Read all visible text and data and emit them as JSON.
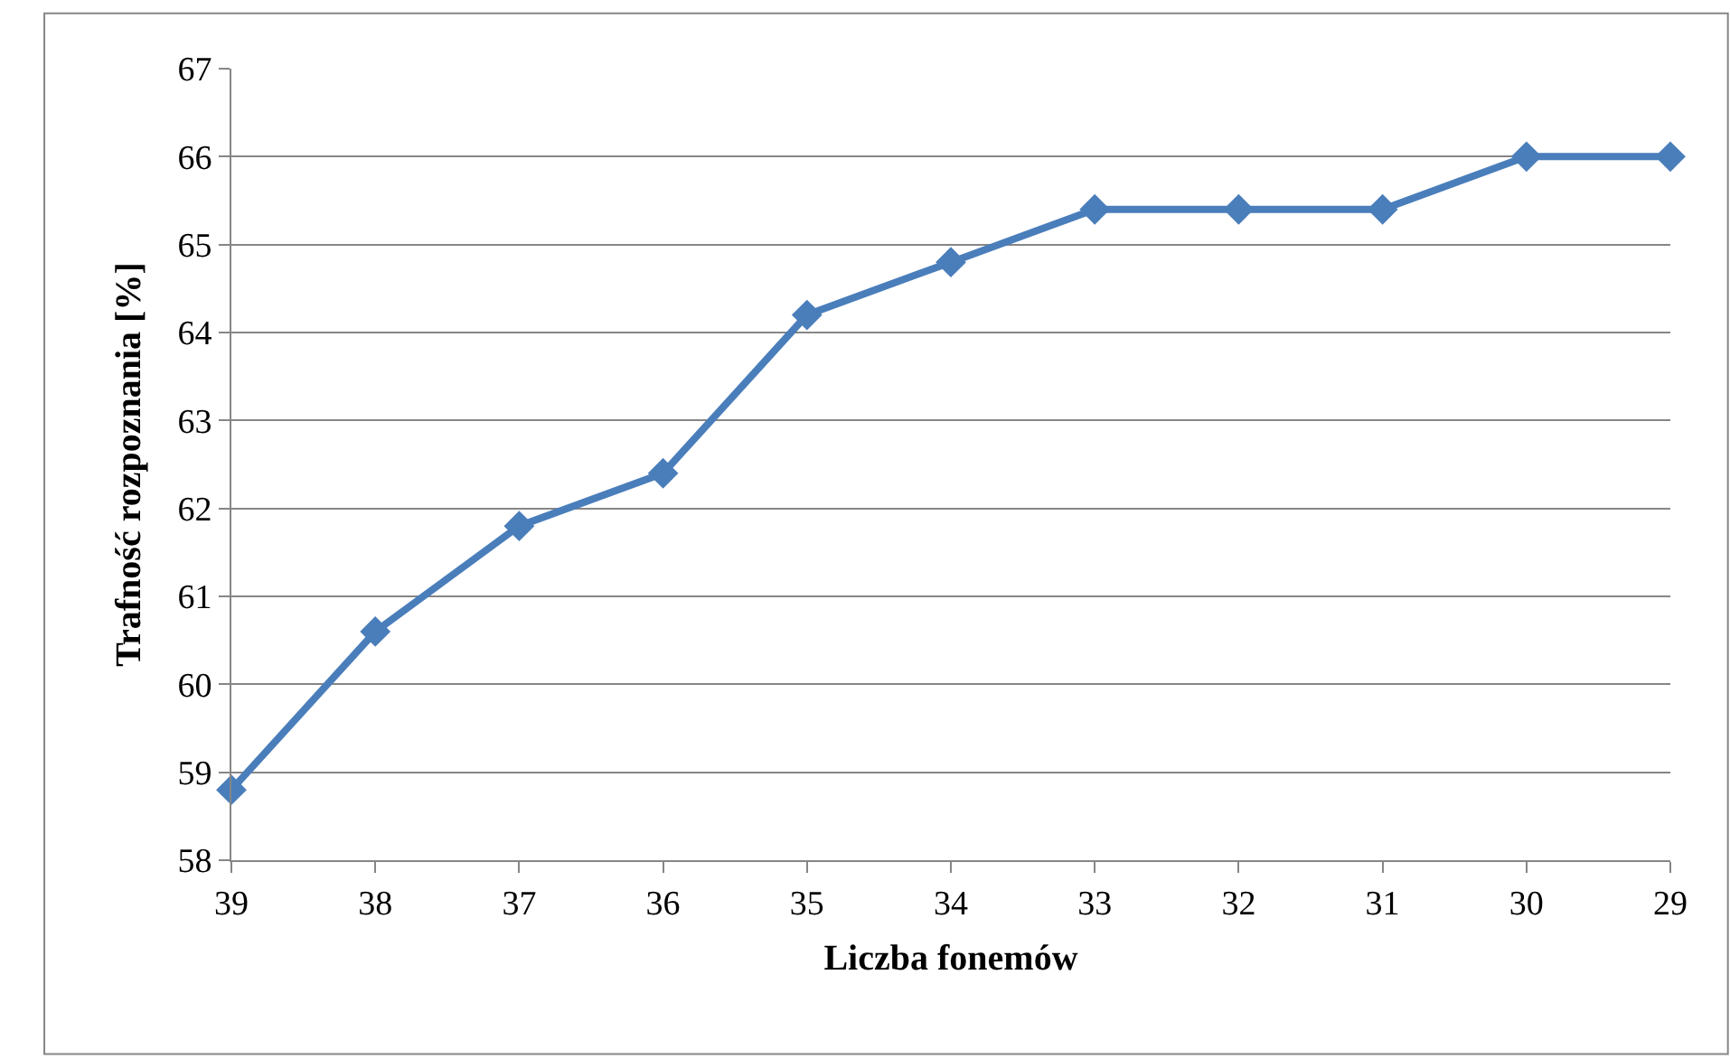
{
  "chart_data": {
    "type": "line",
    "xlabel": "Liczba fonemów",
    "ylabel": "Trafność rozpoznania [%]",
    "categories": [
      "39",
      "38",
      "37",
      "36",
      "35",
      "34",
      "33",
      "32",
      "31",
      "30",
      "29"
    ],
    "series": [
      {
        "color": "#4a7ebb",
        "values": [
          58.8,
          60.6,
          61.8,
          62.4,
          64.2,
          64.8,
          65.4,
          65.4,
          65.4,
          66.0,
          66.0
        ]
      }
    ],
    "ylim": [
      58,
      67
    ],
    "yticks": [
      58,
      59,
      60,
      61,
      62,
      63,
      64,
      65,
      66,
      67
    ],
    "grid": "y",
    "marker": "diamond",
    "line_style": "solid"
  }
}
